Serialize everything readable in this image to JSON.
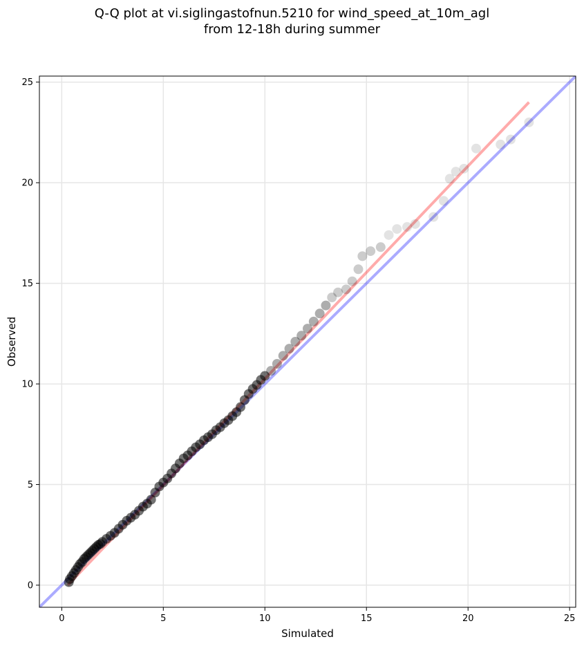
{
  "chart_data": {
    "type": "scatter",
    "title_line1": "Q-Q plot at vi.siglingastofnun.5210 for wind_speed_at_10m_agl",
    "title_line2": "from 12-18h during summer",
    "xlabel": "Simulated",
    "ylabel": "Observed",
    "xlim": [
      -1.1,
      25.3
    ],
    "ylim": [
      -1.1,
      25.3
    ],
    "xticks": [
      0,
      5,
      10,
      15,
      20,
      25
    ],
    "yticks": [
      0,
      5,
      10,
      15,
      20,
      25
    ],
    "grid": true,
    "reference_line": {
      "name": "1:1",
      "color": "#0000ff",
      "x": [
        -1.1,
        25.3
      ],
      "y": [
        -1.1,
        25.3
      ]
    },
    "fit_line": {
      "name": "fit",
      "color": "#ff0000",
      "x": [
        0.3,
        23.0
      ],
      "y": [
        0.0,
        24.0
      ]
    },
    "point_color": "#000000",
    "points": [
      [
        0.35,
        0.15
      ],
      [
        0.4,
        0.3
      ],
      [
        0.5,
        0.45
      ],
      [
        0.6,
        0.6
      ],
      [
        0.7,
        0.75
      ],
      [
        0.8,
        0.9
      ],
      [
        0.9,
        1.05
      ],
      [
        1.0,
        1.15
      ],
      [
        1.1,
        1.3
      ],
      [
        1.2,
        1.4
      ],
      [
        1.3,
        1.5
      ],
      [
        1.4,
        1.6
      ],
      [
        1.5,
        1.7
      ],
      [
        1.6,
        1.8
      ],
      [
        1.7,
        1.9
      ],
      [
        1.8,
        2.0
      ],
      [
        1.9,
        2.05
      ],
      [
        2.0,
        2.15
      ],
      [
        2.2,
        2.3
      ],
      [
        2.4,
        2.45
      ],
      [
        2.6,
        2.6
      ],
      [
        2.8,
        2.8
      ],
      [
        3.0,
        3.0
      ],
      [
        3.2,
        3.2
      ],
      [
        3.4,
        3.35
      ],
      [
        3.6,
        3.5
      ],
      [
        3.8,
        3.7
      ],
      [
        4.0,
        3.9
      ],
      [
        4.2,
        4.05
      ],
      [
        4.4,
        4.25
      ],
      [
        4.6,
        4.6
      ],
      [
        4.8,
        4.9
      ],
      [
        5.0,
        5.1
      ],
      [
        5.2,
        5.3
      ],
      [
        5.4,
        5.55
      ],
      [
        5.6,
        5.8
      ],
      [
        5.8,
        6.05
      ],
      [
        6.0,
        6.3
      ],
      [
        6.2,
        6.45
      ],
      [
        6.4,
        6.65
      ],
      [
        6.6,
        6.85
      ],
      [
        6.8,
        7.0
      ],
      [
        7.0,
        7.2
      ],
      [
        7.2,
        7.35
      ],
      [
        7.4,
        7.5
      ],
      [
        7.6,
        7.7
      ],
      [
        7.8,
        7.85
      ],
      [
        8.0,
        8.05
      ],
      [
        8.2,
        8.2
      ],
      [
        8.4,
        8.4
      ],
      [
        8.6,
        8.6
      ],
      [
        8.8,
        8.85
      ],
      [
        9.0,
        9.2
      ],
      [
        9.2,
        9.5
      ],
      [
        9.4,
        9.75
      ],
      [
        9.6,
        9.95
      ],
      [
        9.8,
        10.2
      ],
      [
        10.0,
        10.4
      ],
      [
        10.3,
        10.65
      ],
      [
        10.6,
        11.0
      ],
      [
        10.9,
        11.4
      ],
      [
        11.2,
        11.75
      ],
      [
        11.5,
        12.1
      ],
      [
        11.8,
        12.4
      ],
      [
        12.1,
        12.75
      ],
      [
        12.4,
        13.1
      ],
      [
        12.7,
        13.5
      ],
      [
        13.0,
        13.9
      ],
      [
        13.3,
        14.3
      ],
      [
        13.6,
        14.55
      ],
      [
        14.0,
        14.7
      ],
      [
        14.3,
        15.1
      ],
      [
        14.6,
        15.7
      ],
      [
        14.8,
        16.35
      ],
      [
        15.2,
        16.6
      ],
      [
        15.7,
        16.8
      ],
      [
        16.1,
        17.4
      ],
      [
        16.5,
        17.7
      ],
      [
        17.0,
        17.8
      ],
      [
        17.4,
        17.95
      ],
      [
        18.3,
        18.3
      ],
      [
        18.8,
        19.1
      ],
      [
        19.1,
        20.2
      ],
      [
        19.4,
        20.55
      ],
      [
        19.8,
        20.7
      ],
      [
        20.4,
        21.7
      ],
      [
        21.6,
        21.9
      ],
      [
        22.1,
        22.15
      ],
      [
        23.0,
        23.0
      ]
    ]
  }
}
